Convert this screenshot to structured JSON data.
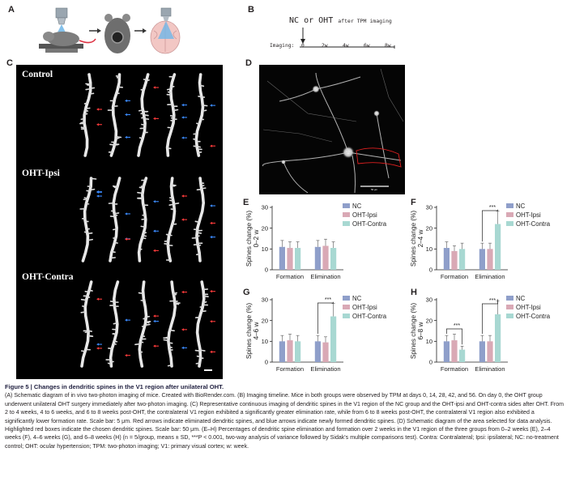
{
  "panel_labels": {
    "a": "A",
    "b": "B",
    "c": "C",
    "d": "D",
    "e": "E",
    "f": "F",
    "g": "G",
    "h": "H"
  },
  "timeline": {
    "top_text_1": "NC",
    "top_text_or": "or",
    "top_text_2": "OHT",
    "top_text_after": "after TPM imaging",
    "axis_label": "Imaging:",
    "ticks": [
      "0",
      "2w",
      "4w",
      "6w",
      "8w"
    ]
  },
  "panel_c": {
    "rows": [
      "Control",
      "OHT-Ipsi",
      "OHT-Contra"
    ],
    "scale_bar": "5 μm"
  },
  "panel_d": {
    "scale_text": "50 μm"
  },
  "legend": {
    "nc": "NC",
    "ipsi": "OHT-Ipsi",
    "contra": "OHT-Contra"
  },
  "colors": {
    "nc": "#8f9fca",
    "ipsi": "#d9a9b5",
    "contra": "#a8d8d2",
    "arrow_red": "#ff3b3b",
    "arrow_blue": "#3b8bff",
    "box_red": "#e02020"
  },
  "chart_data": [
    {
      "panel": "E",
      "type": "bar",
      "ylabel": "Spines change (%) 0–2 w",
      "ylim": [
        0,
        30
      ],
      "yticks": [
        "0",
        "10",
        "20",
        "30"
      ],
      "categories": [
        "Formation",
        "Elimination"
      ],
      "series": [
        {
          "name": "NC",
          "values": [
            11,
            11
          ]
        },
        {
          "name": "OHT-Ipsi",
          "values": [
            10.5,
            11.5
          ]
        },
        {
          "name": "OHT-Contra",
          "values": [
            10.5,
            10.5
          ]
        }
      ],
      "significance": []
    },
    {
      "panel": "F",
      "type": "bar",
      "ylabel": "Spines change (%) 2–4 w",
      "ylim": [
        0,
        30
      ],
      "yticks": [
        "0",
        "10",
        "20",
        "30"
      ],
      "categories": [
        "Formation",
        "Elimination"
      ],
      "series": [
        {
          "name": "NC",
          "values": [
            10.5,
            10
          ]
        },
        {
          "name": "OHT-Ipsi",
          "values": [
            9,
            10
          ]
        },
        {
          "name": "OHT-Contra",
          "values": [
            10,
            22
          ]
        }
      ],
      "significance": [
        {
          "label": "***"
        }
      ]
    },
    {
      "panel": "G",
      "type": "bar",
      "ylabel": "Spines change (%) 4–6 w",
      "ylim": [
        0,
        30
      ],
      "yticks": [
        "0",
        "10",
        "20",
        "30"
      ],
      "categories": [
        "Formation",
        "Elimination"
      ],
      "series": [
        {
          "name": "NC",
          "values": [
            10,
            10
          ]
        },
        {
          "name": "OHT-Ipsi",
          "values": [
            10.5,
            9.5
          ]
        },
        {
          "name": "OHT-Contra",
          "values": [
            10,
            22
          ]
        }
      ],
      "significance": [
        {
          "label": "***"
        }
      ]
    },
    {
      "panel": "H",
      "type": "bar",
      "ylabel": "Spines change (%) 6–8 w",
      "ylim": [
        0,
        30
      ],
      "yticks": [
        "0",
        "10",
        "20",
        "30"
      ],
      "categories": [
        "Formation",
        "Elimination"
      ],
      "series": [
        {
          "name": "NC",
          "values": [
            10,
            10
          ]
        },
        {
          "name": "OHT-Ipsi",
          "values": [
            10.5,
            10
          ]
        },
        {
          "name": "OHT-Contra",
          "values": [
            6,
            23
          ]
        }
      ],
      "significance": [
        {
          "label": "***"
        },
        {
          "label": "***"
        }
      ]
    }
  ],
  "caption": {
    "title": "Figure 5 | Changes in dendritic spines in the V1 region after unilateral OHT.",
    "body_1": "(A) Schematic diagram of in vivo two-photon imaging of mice. Created with BioRender.com. (B) Imaging timeline. Mice in both groups were observed by TPM at days 0, 14, 28, 42, and 56. On day 0, the OHT group underwent unilateral OHT surgery immediately after two-photon imaging. (C) Representative continuous imaging of dendritic spines in the V1 region of the NC group and the OHT-ipsi and OHT-contra sides after OHT. From 2 to 4 weeks, 4 to 6 weeks, and 6 to 8 weeks post-OHT, the contralateral V1 region exhibited a significantly greater elimination rate, while from 6 to 8 weeks post-OHT, the contralateral V1 region also exhibited a significantly lower formation rate. Scale bar: 5 μm. Red arrows indicate eliminated dendritic spines, and blue arrows indicate newly formed dendritic spines. (D) Schematic diagram of the area selected for data analysis. Highlighted red boxes indicate the chosen dendritic spines. Scale bar: 50 μm. (E–H) Percentages of dendritic spine elimination and formation over 2 weeks in the V1 region of the three groups from 0–2 weeks (E), 2–4 weeks (F), 4–6 weeks (G), and 6–8 weeks (H) (n = 5/group, means ± SD, ***P < 0.001, two-way analysis of variance followed by Sidak's multiple comparisons test). Contra: Contralateral; Ipsi: ipsilateral; NC: no-treatment control; OHT: ocular hypertension; TPM: two-photon imaging; V1: primary visual cortex; w: week."
  }
}
